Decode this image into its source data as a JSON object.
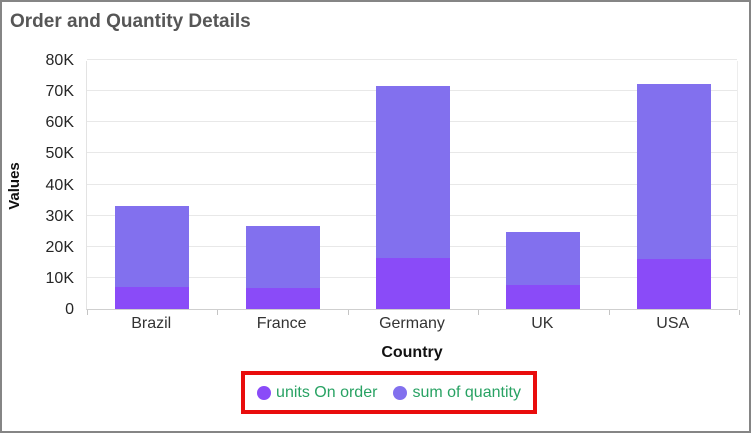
{
  "window": {
    "background": "#ffffff",
    "border_color": "#858585"
  },
  "header": {
    "title": "Order and Quantity Details",
    "title_color": "#565656"
  },
  "chart_data": {
    "type": "bar",
    "stacked": true,
    "title": "Order and Quantity Details",
    "xlabel": "Country",
    "ylabel": "Values",
    "categories": [
      "Brazil",
      "France",
      "Germany",
      "UK",
      "USA"
    ],
    "series": [
      {
        "name": "units On order",
        "color": "#8a4bf8",
        "values": [
          7000,
          6700,
          16300,
          7600,
          16200
        ]
      },
      {
        "name": "sum of quantity",
        "color": "#8270ee",
        "values": [
          26000,
          20000,
          55500,
          17200,
          56200
        ]
      }
    ],
    "stacked_totals": [
      33000,
      26700,
      71800,
      24800,
      72400
    ],
    "ylim": [
      0,
      80000
    ],
    "ytick_step": 10000,
    "ytick_labels": [
      "0",
      "10K",
      "20K",
      "30K",
      "40K",
      "50K",
      "60K",
      "70K",
      "80K"
    ],
    "grid": true,
    "gridline_color": "#e8e8e8",
    "legend_position": "bottom",
    "legend_text_color": "#28a263"
  },
  "annotation": {
    "shape": "red-rectangle",
    "color": "#e90d0d",
    "around": "legend"
  }
}
